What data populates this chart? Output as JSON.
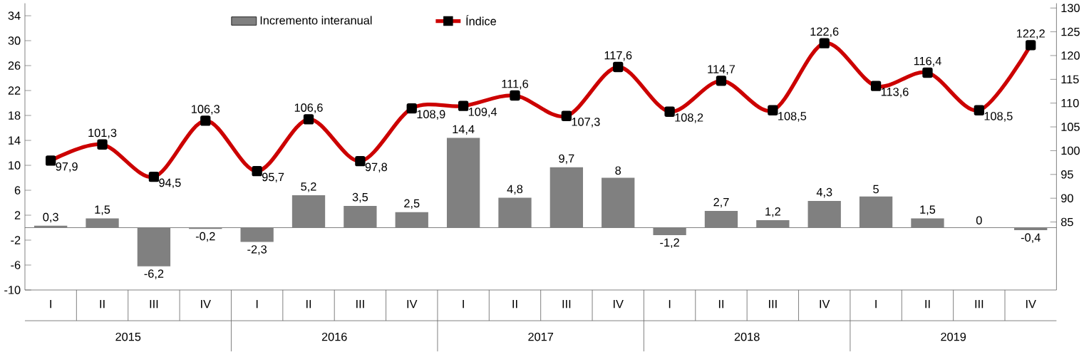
{
  "chart_data": {
    "type": "bar",
    "categories": [
      "I",
      "II",
      "III",
      "IV",
      "I",
      "II",
      "III",
      "IV",
      "I",
      "II",
      "III",
      "IV",
      "I",
      "II",
      "III",
      "IV",
      "I",
      "II",
      "III",
      "IV"
    ],
    "series": [
      {
        "name": "Incremento interanual",
        "color": "#808080",
        "values": [
          0.3,
          1.5,
          -6.2,
          -0.2,
          -2.3,
          5.2,
          3.5,
          2.5,
          14.4,
          4.8,
          9.7,
          8,
          -1.2,
          2.7,
          1.2,
          4.3,
          5,
          1.5,
          0,
          -0.4
        ],
        "value_labels": [
          "0,3",
          "1,5",
          "-6,2",
          "-0,2",
          "-2,3",
          "5,2",
          "3,5",
          "2,5",
          "14,4",
          "4,8",
          "9,7",
          "8",
          "-1,2",
          "2,7",
          "1,2",
          "4,3",
          "5",
          "1,5",
          "0",
          "-0,4"
        ]
      },
      {
        "name": "Índice",
        "type": "line",
        "axis": "y2",
        "color": "#cc0000",
        "marker": "square",
        "line_style": "solid",
        "values": [
          97.9,
          101.3,
          94.5,
          106.3,
          95.7,
          106.6,
          97.8,
          108.9,
          109.4,
          111.6,
          107.3,
          117.6,
          108.2,
          114.7,
          108.5,
          122.6,
          113.6,
          116.4,
          108.5,
          122.2
        ],
        "value_labels": [
          "97,9",
          "101,3",
          "94,5",
          "106,3",
          "95,7",
          "106,6",
          "97,8",
          "108,9",
          "109,4",
          "111,6",
          "107,3",
          "117,6",
          "108,2",
          "114,7",
          "108,5",
          "122,6",
          "113,6",
          "116,4",
          "108,5",
          "122,2"
        ]
      }
    ],
    "ylim": [
      -10,
      36
    ],
    "yticks": [
      -10,
      -6,
      -2,
      2,
      6,
      10,
      14,
      18,
      22,
      26,
      30,
      34
    ],
    "y2lim": [
      70.7,
      131
    ],
    "y2ticks": [
      85,
      90,
      95,
      100,
      105,
      110,
      115,
      120,
      125,
      130
    ],
    "annotations": [
      "2015",
      "2016",
      "2017",
      "2018",
      "2019"
    ],
    "legend": "top"
  }
}
